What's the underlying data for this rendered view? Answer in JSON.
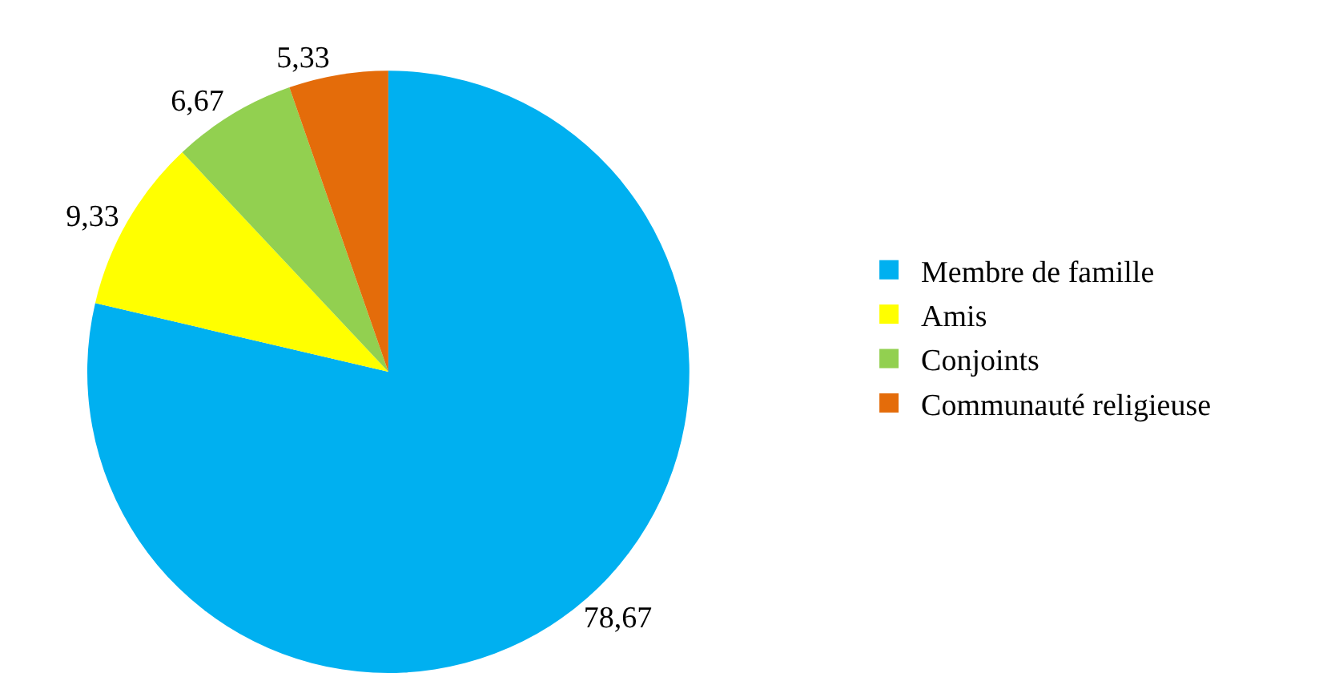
{
  "chart_data": {
    "type": "pie",
    "categories": [
      "Membre de famille",
      "Amis",
      "Conjoints",
      "Communauté religieuse"
    ],
    "values": [
      78.67,
      9.33,
      6.67,
      5.33
    ],
    "colors": [
      "#00b0f0",
      "#ffff00",
      "#92d050",
      "#e46c0a"
    ],
    "value_labels": [
      "78,67",
      "9,33",
      "6,67",
      "5,33"
    ],
    "legend": "right"
  }
}
